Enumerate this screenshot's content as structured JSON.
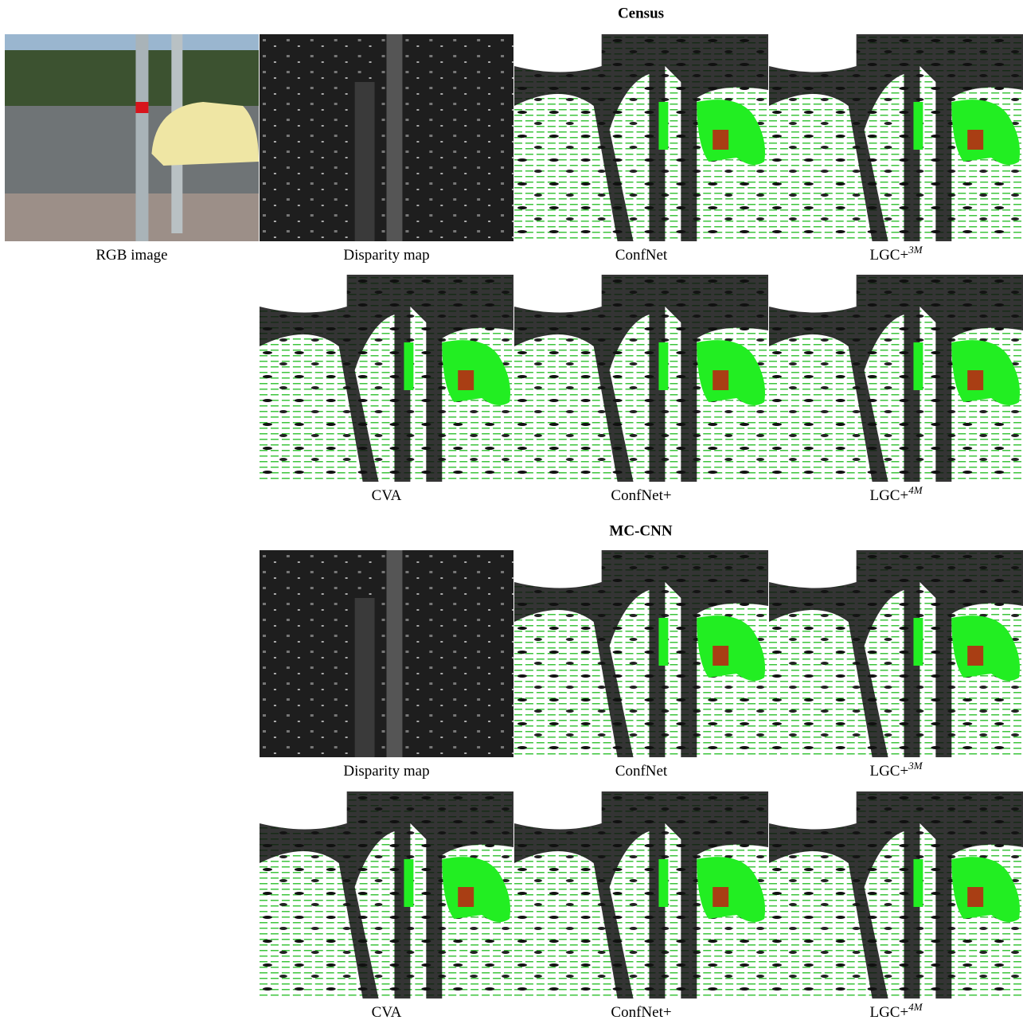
{
  "sections": [
    {
      "title": "Census",
      "rows": [
        [
          {
            "text": "RGB image"
          },
          {
            "text": "Disparity map"
          },
          {
            "text": "ConfNet"
          },
          {
            "text": "LGC+",
            "sup": "3M"
          }
        ],
        [
          {
            "text": "CVA"
          },
          {
            "text": "ConfNet+"
          },
          {
            "text": "LGC+",
            "sup": "4M"
          }
        ]
      ]
    },
    {
      "title": "MC-CNN",
      "rows": [
        [
          {
            "text": "Disparity map"
          },
          {
            "text": "ConfNet"
          },
          {
            "text": "LGC+",
            "sup": "3M"
          }
        ],
        [
          {
            "text": "CVA"
          },
          {
            "text": "ConfNet+"
          },
          {
            "text": "LGC+",
            "sup": "4M"
          }
        ]
      ]
    }
  ]
}
